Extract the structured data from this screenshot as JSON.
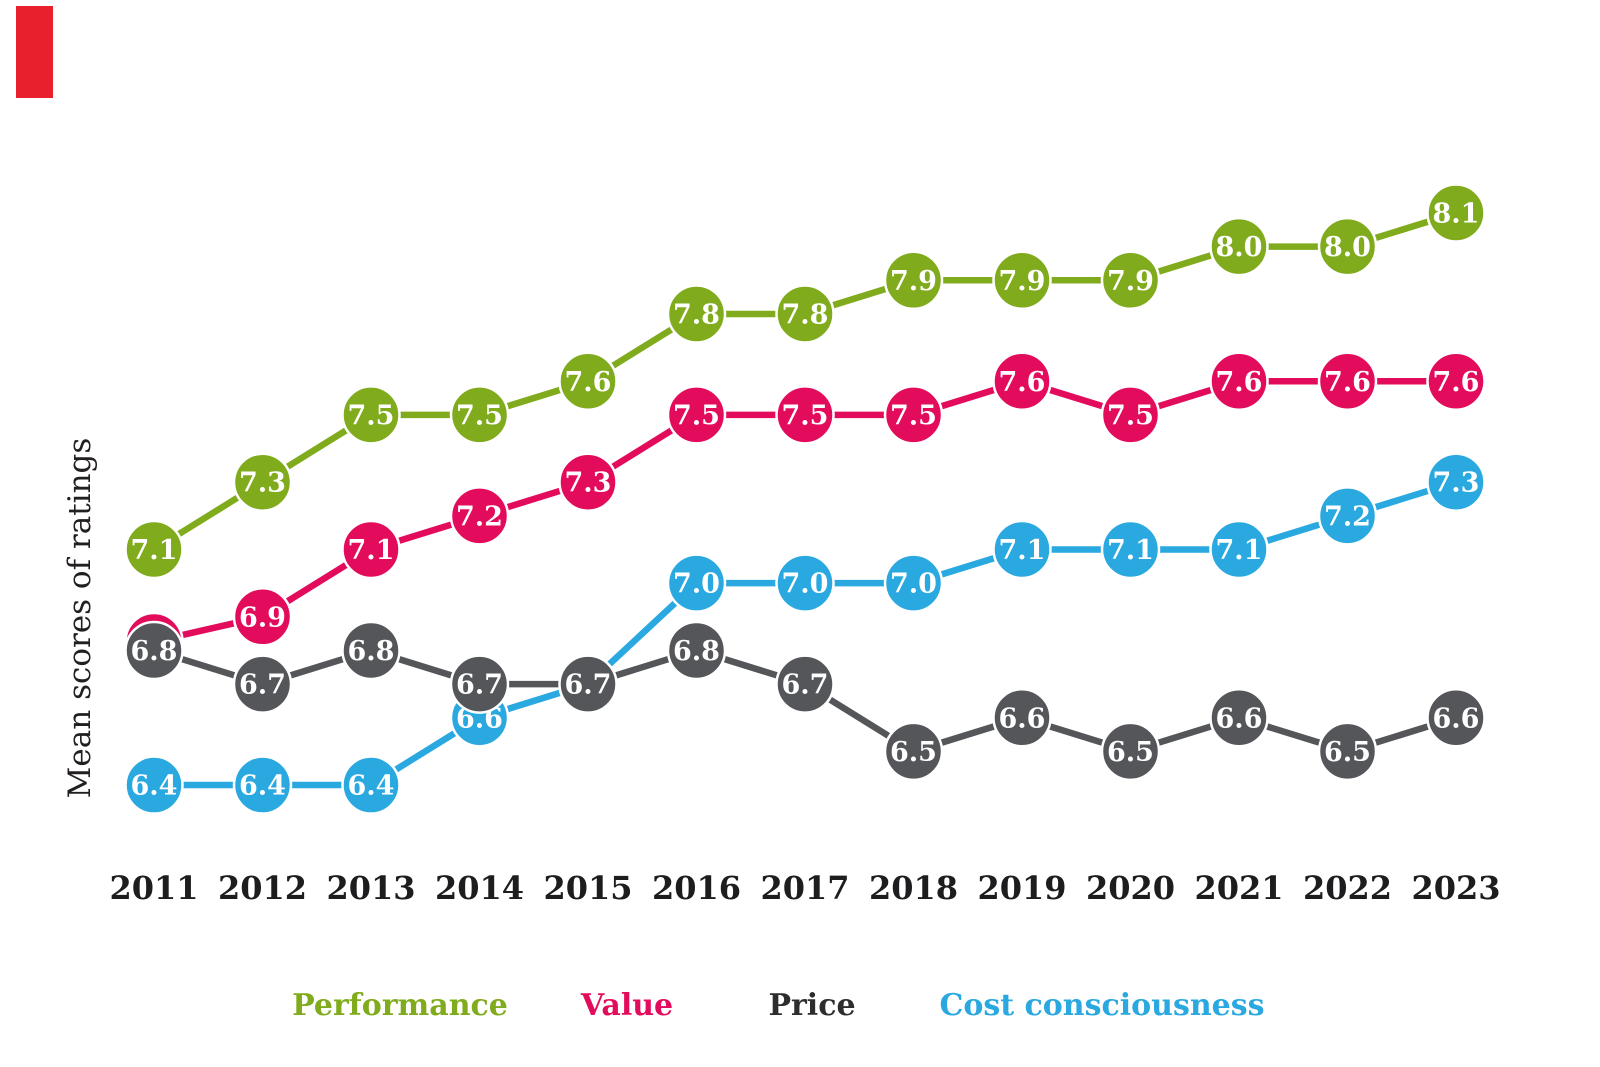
{
  "marker": {
    "color": "#e8202e"
  },
  "chart_data": {
    "type": "line",
    "title": "",
    "xlabel": "",
    "ylabel": "Mean scores of ratings",
    "x": [
      2011,
      2012,
      2013,
      2014,
      2015,
      2016,
      2017,
      2018,
      2019,
      2020,
      2021,
      2022,
      2023
    ],
    "series": [
      {
        "name": "Performance",
        "color": "#80ab1c",
        "values": [
          7.1,
          7.3,
          7.5,
          7.5,
          7.6,
          7.8,
          7.8,
          7.9,
          7.9,
          7.9,
          8.0,
          8.0,
          8.1
        ]
      },
      {
        "name": "Value",
        "color": "#e30b5c",
        "values": [
          6.8,
          6.9,
          7.1,
          7.2,
          7.3,
          7.5,
          7.5,
          7.5,
          7.6,
          7.5,
          7.6,
          7.6,
          7.6
        ]
      },
      {
        "name": "Cost consciousness",
        "color": "#2aa8e0",
        "values": [
          6.4,
          6.4,
          6.4,
          6.6,
          6.7,
          7.0,
          7.0,
          7.0,
          7.1,
          7.1,
          7.1,
          7.2,
          7.3
        ]
      },
      {
        "name": "Price",
        "color": "#54565a",
        "values": [
          6.8,
          6.7,
          6.8,
          6.7,
          6.7,
          6.8,
          6.7,
          6.5,
          6.6,
          6.5,
          6.6,
          6.5,
          6.6
        ]
      }
    ],
    "legend": [
      {
        "label": "Performance",
        "color": "#80ab1c"
      },
      {
        "label": "Value",
        "color": "#e30b5c"
      },
      {
        "label": "Price",
        "color": "#2d2d2f"
      },
      {
        "label": "Cost consciousness",
        "color": "#2aa8e0"
      }
    ],
    "legend_position": "bottom",
    "grid": false,
    "point_labels_shown": true
  }
}
